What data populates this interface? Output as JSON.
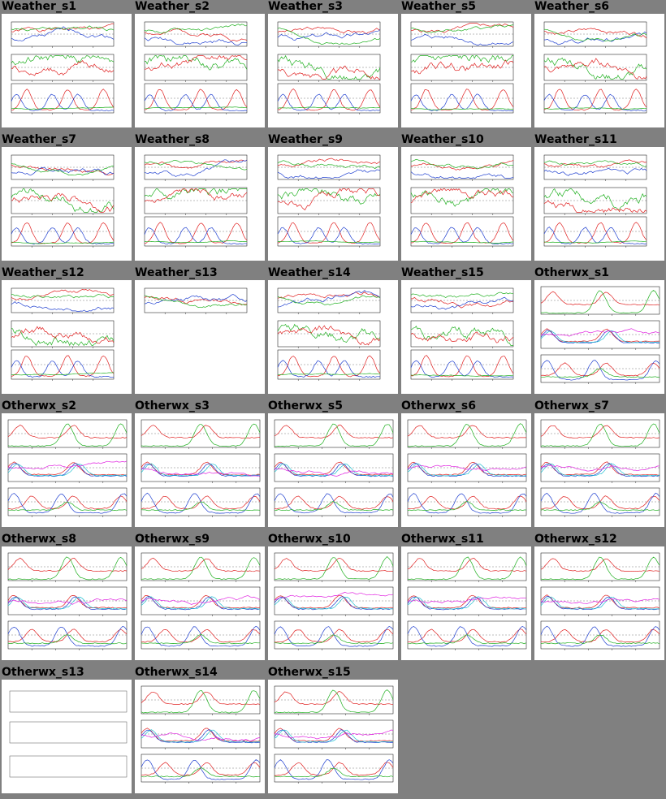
{
  "rows": [
    [
      {
        "title": "Weather_s1",
        "kind": "weather",
        "seed": 1
      },
      {
        "title": "Weather_s2",
        "kind": "weather",
        "seed": 2
      },
      {
        "title": "Weather_s3",
        "kind": "weather",
        "seed": 3
      },
      {
        "title": "Weather_s5",
        "kind": "weather",
        "seed": 5
      },
      {
        "title": "Weather_s6",
        "kind": "weather",
        "seed": 6
      }
    ],
    [
      {
        "title": "Weather_s7",
        "kind": "weather",
        "seed": 7
      },
      {
        "title": "Weather_s8",
        "kind": "weather",
        "seed": 8
      },
      {
        "title": "Weather_s9",
        "kind": "weather",
        "seed": 9
      },
      {
        "title": "Weather_s10",
        "kind": "weather",
        "seed": 10
      },
      {
        "title": "Weather_s11",
        "kind": "weather",
        "seed": 11
      }
    ],
    [
      {
        "title": "Weather_s12",
        "kind": "weather",
        "seed": 12
      },
      {
        "title": "Weather_s13",
        "kind": "weather-partial",
        "seed": 13
      },
      {
        "title": "Weather_s14",
        "kind": "weather",
        "seed": 14
      },
      {
        "title": "Weather_s15",
        "kind": "weather",
        "seed": 15
      },
      {
        "title": "Otherwx_s1",
        "kind": "otherwx",
        "seed": 21
      }
    ],
    [
      {
        "title": "Otherwx_s2",
        "kind": "otherwx",
        "seed": 22
      },
      {
        "title": "Otherwx_s3",
        "kind": "otherwx",
        "seed": 23
      },
      {
        "title": "Otherwx_s5",
        "kind": "otherwx",
        "seed": 25
      },
      {
        "title": "Otherwx_s6",
        "kind": "otherwx",
        "seed": 26
      },
      {
        "title": "Otherwx_s7",
        "kind": "otherwx",
        "seed": 27
      }
    ],
    [
      {
        "title": "Otherwx_s8",
        "kind": "otherwx",
        "seed": 28
      },
      {
        "title": "Otherwx_s9",
        "kind": "otherwx",
        "seed": 29
      },
      {
        "title": "Otherwx_s10",
        "kind": "otherwx",
        "seed": 30
      },
      {
        "title": "Otherwx_s11",
        "kind": "otherwx",
        "seed": 31
      },
      {
        "title": "Otherwx_s12",
        "kind": "otherwx",
        "seed": 32
      }
    ],
    [
      {
        "title": "Otherwx_s13",
        "kind": "empty",
        "seed": 33
      },
      {
        "title": "Otherwx_s14",
        "kind": "otherwx",
        "seed": 34
      },
      {
        "title": "Otherwx_s15",
        "kind": "otherwx",
        "seed": 35
      }
    ]
  ],
  "colors": {
    "page_background": "#808080",
    "thumb_background": "#ffffff",
    "red": "#e02020",
    "green": "#20b020",
    "blue": "#2040d0",
    "cyan": "#20c0d0",
    "magenta": "#e020e0"
  }
}
